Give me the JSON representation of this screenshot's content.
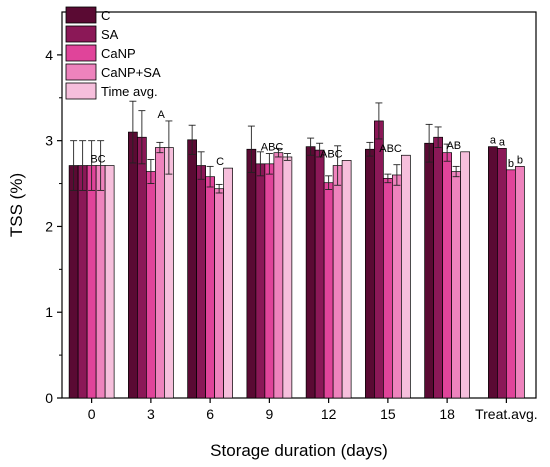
{
  "chart_data": {
    "type": "bar",
    "xlabel": "Storage duration (days)",
    "ylabel": "TSS (%)",
    "ylim": [
      0,
      4.5
    ],
    "yticks": [
      "0",
      "1",
      "2",
      "3",
      "4"
    ],
    "categories": [
      "0",
      "3",
      "6",
      "9",
      "12",
      "15",
      "18",
      "Treat.avg."
    ],
    "legend_position": "top-left",
    "series": [
      {
        "name": "C",
        "color": "#5a0a33",
        "values": [
          2.71,
          3.1,
          3.01,
          2.9,
          2.93,
          2.9,
          2.97,
          2.93
        ],
        "errors": [
          0.29,
          0.36,
          0.17,
          0.27,
          0.1,
          0.08,
          0.22,
          0
        ]
      },
      {
        "name": "SA",
        "color": "#8b1857",
        "values": [
          2.71,
          3.04,
          2.71,
          2.73,
          2.89,
          3.23,
          3.04,
          2.91
        ],
        "errors": [
          0.29,
          0.31,
          0.16,
          0.14,
          0.08,
          0.21,
          0.12,
          0
        ]
      },
      {
        "name": "CaNP",
        "color": "#e0449a",
        "values": [
          2.71,
          2.64,
          2.58,
          2.73,
          2.51,
          2.56,
          2.86,
          2.66
        ],
        "errors": [
          0.29,
          0.14,
          0.12,
          0.12,
          0.08,
          0.05,
          0.1,
          0
        ]
      },
      {
        "name": "CaNP+SA",
        "color": "#ee83bd",
        "values": [
          2.71,
          2.92,
          2.44,
          2.86,
          2.71,
          2.6,
          2.64,
          2.7
        ],
        "errors": [
          0.29,
          0.06,
          0.05,
          0.05,
          0.23,
          0.12,
          0.06,
          0
        ]
      },
      {
        "name": "Time avg.",
        "color": "#f6bfdc",
        "values": [
          2.71,
          2.92,
          2.68,
          2.81,
          2.77,
          2.83,
          2.87,
          null
        ],
        "errors": [
          0,
          0.31,
          0,
          0.04,
          0,
          0,
          0,
          0
        ]
      }
    ],
    "time_avg_letters": [
      "BC",
      "A",
      "C",
      "ABC",
      "ABC",
      "ABC",
      "AB"
    ],
    "treatment_letters": [
      "a",
      "a",
      "b",
      "b"
    ]
  }
}
